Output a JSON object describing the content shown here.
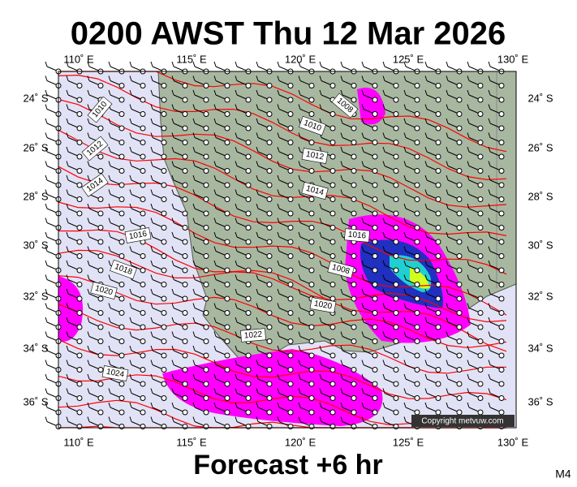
{
  "header": {
    "title": "0200 AWST Thu 12 Mar 2026"
  },
  "footer": {
    "forecast": "Forecast +6 hr",
    "code": "M4"
  },
  "copyright": "Copyright metvuw.com",
  "map": {
    "top_labels": [
      "110˚ E",
      "115˚ E",
      "120˚ E",
      "125˚ E",
      "130˚ E"
    ],
    "bottom_labels": [
      "110˚ E",
      "115˚ E",
      "120˚ E",
      "125˚ E",
      "130˚ E"
    ],
    "left_labels": [
      "24˚ S",
      "26˚ S",
      "28˚ S",
      "30˚ S",
      "32˚ S",
      "34˚ S",
      "36˚ S"
    ],
    "right_labels": [
      "24˚ S",
      "26˚ S",
      "28˚ S",
      "30˚ S",
      "32˚ S",
      "34˚ S",
      "36˚ S"
    ],
    "isobar_labels": [
      "1010",
      "1012",
      "1014",
      "1016",
      "1018",
      "1020",
      "1024",
      "1022",
      "1020",
      "1008",
      "1016",
      "1014",
      "1012",
      "1010",
      "1008"
    ]
  }
}
